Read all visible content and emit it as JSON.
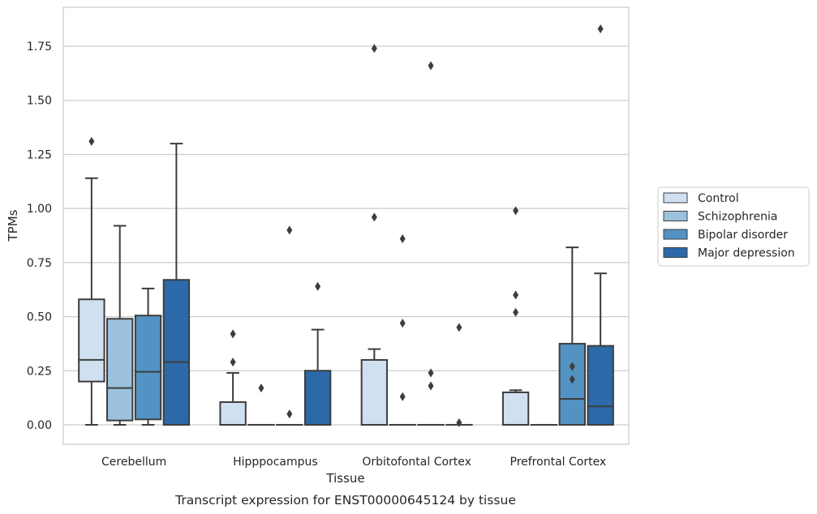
{
  "chart_data": {
    "type": "boxplot",
    "title": "Transcript expression for ENST00000645124 by tissue",
    "xlabel": "Tissue",
    "ylabel": "TPMs",
    "ylim": [
      -0.09,
      1.93
    ],
    "yticks": [
      0.0,
      0.25,
      0.5,
      0.75,
      1.0,
      1.25,
      1.5,
      1.75
    ],
    "ytick_labels": [
      "0.00",
      "0.25",
      "0.50",
      "0.75",
      "1.00",
      "1.25",
      "1.50",
      "1.75"
    ],
    "grid": "horizontal",
    "legend_position": "right",
    "categories": [
      "Cerebellum",
      "Hipppocampus",
      "Orbitofontal Cortex",
      "Prefrontal Cortex"
    ],
    "series": [
      {
        "name": "Control",
        "color": "#d1e0f0",
        "boxes": [
          {
            "whislo": 0.0,
            "q1": 0.2,
            "med": 0.3,
            "q3": 0.58,
            "whishi": 1.14,
            "fliers": [
              1.31
            ]
          },
          {
            "whislo": 0.0,
            "q1": 0.0,
            "med": 0.0,
            "q3": 0.105,
            "whishi": 0.24,
            "fliers": [
              0.29,
              0.42
            ]
          },
          {
            "whislo": 0.0,
            "q1": 0.0,
            "med": 0.0,
            "q3": 0.3,
            "whishi": 0.35,
            "fliers": [
              0.96,
              1.74
            ]
          },
          {
            "whislo": 0.0,
            "q1": 0.0,
            "med": 0.0,
            "q3": 0.15,
            "whishi": 0.16,
            "fliers": [
              0.52,
              0.6,
              0.99
            ]
          }
        ]
      },
      {
        "name": "Schizophrenia",
        "color": "#9bc1dc",
        "boxes": [
          {
            "whislo": 0.0,
            "q1": 0.02,
            "med": 0.17,
            "q3": 0.49,
            "whishi": 0.92,
            "fliers": []
          },
          {
            "whislo": 0.0,
            "q1": 0.0,
            "med": 0.0,
            "q3": 0.0,
            "whishi": 0.0,
            "fliers": [
              0.17
            ]
          },
          {
            "whislo": 0.0,
            "q1": 0.0,
            "med": 0.0,
            "q3": 0.0,
            "whishi": 0.0,
            "fliers": [
              0.13,
              0.47,
              0.86
            ]
          },
          {
            "whislo": 0.0,
            "q1": 0.0,
            "med": 0.0,
            "q3": 0.0,
            "whishi": 0.0,
            "fliers": []
          }
        ]
      },
      {
        "name": "Bipolar disorder",
        "color": "#5293c4",
        "boxes": [
          {
            "whislo": 0.0,
            "q1": 0.025,
            "med": 0.245,
            "q3": 0.505,
            "whishi": 0.63,
            "fliers": []
          },
          {
            "whislo": 0.0,
            "q1": 0.0,
            "med": 0.0,
            "q3": 0.0,
            "whishi": 0.0,
            "fliers": [
              0.05,
              0.9
            ]
          },
          {
            "whislo": 0.0,
            "q1": 0.0,
            "med": 0.0,
            "q3": 0.0,
            "whishi": 0.0,
            "fliers": [
              0.18,
              0.24,
              1.66
            ]
          },
          {
            "whislo": 0.0,
            "q1": 0.0,
            "med": 0.12,
            "q3": 0.375,
            "whishi": 0.82,
            "fliers": [
              0.21,
              0.27
            ]
          }
        ]
      },
      {
        "name": "Major depression",
        "color": "#2b69a8",
        "boxes": [
          {
            "whislo": 0.0,
            "q1": 0.0,
            "med": 0.29,
            "q3": 0.67,
            "whishi": 1.3,
            "fliers": []
          },
          {
            "whislo": 0.0,
            "q1": 0.0,
            "med": 0.0,
            "q3": 0.25,
            "whishi": 0.44,
            "fliers": [
              0.64
            ]
          },
          {
            "whislo": 0.0,
            "q1": 0.0,
            "med": 0.0,
            "q3": 0.0,
            "whishi": 0.0,
            "fliers": [
              0.01,
              0.45
            ]
          },
          {
            "whislo": 0.0,
            "q1": 0.0,
            "med": 0.085,
            "q3": 0.365,
            "whishi": 0.7,
            "fliers": [
              1.83
            ]
          }
        ]
      }
    ]
  }
}
